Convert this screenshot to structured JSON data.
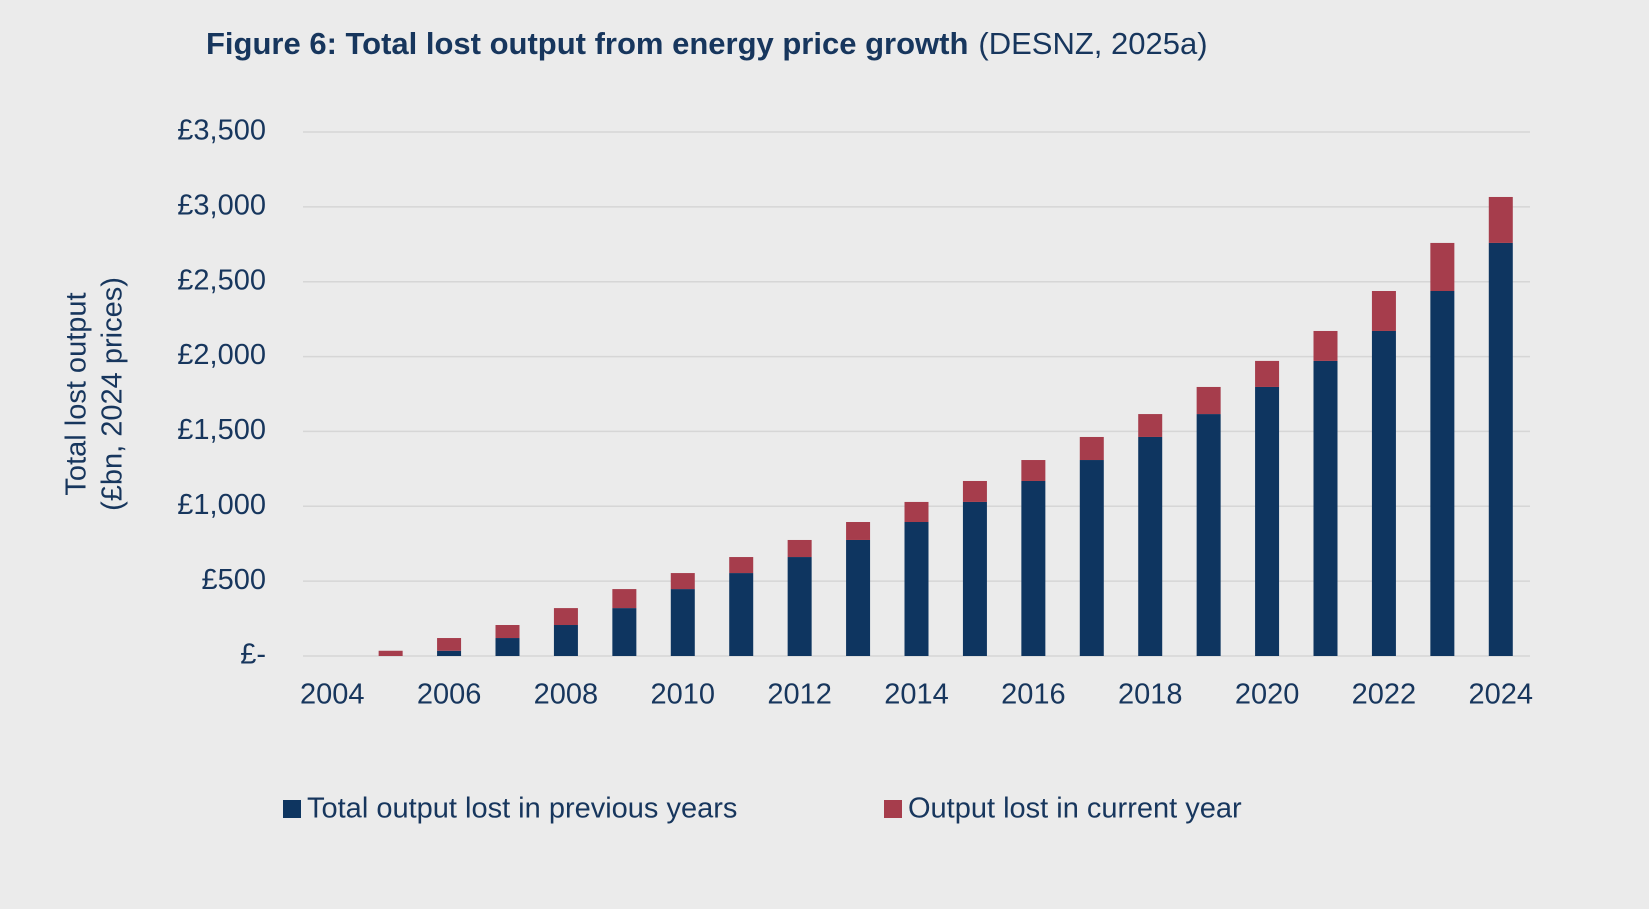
{
  "chart_data": {
    "type": "stacked_bar",
    "title": "Figure 6: Total lost output from energy price growth",
    "subtitle": "(DESNZ, 2025a)",
    "y_label": [
      "Total lost output",
      "(£bn, 2024 prices)"
    ],
    "categories": [
      "2004",
      null,
      "2006",
      null,
      "2008",
      null,
      "2010",
      null,
      "2012",
      null,
      "2014",
      null,
      "2016",
      null,
      "2018",
      null,
      "2020",
      null,
      "2022",
      null,
      "2024"
    ],
    "series": [
      {
        "name": "Total output lost in previous years",
        "color": "#0e3560",
        "values": [
          0,
          0,
          35,
          120,
          207,
          320,
          447,
          554,
          661,
          775,
          895,
          1029,
          1169,
          1309,
          1463,
          1616,
          1797,
          1971,
          2171,
          2438,
          2759
        ]
      },
      {
        "name": "Output lost in current year",
        "color": "#a63d4c",
        "values": [
          0,
          35,
          85,
          87,
          113,
          127,
          107,
          107,
          114,
          120,
          134,
          140,
          140,
          154,
          153,
          181,
          174,
          200,
          267,
          321,
          307
        ]
      }
    ],
    "ylim": [
      0,
      3500
    ],
    "yticks": [
      {
        "value": 0,
        "label": "£-"
      },
      {
        "value": 500,
        "label": "£500"
      },
      {
        "value": 1000,
        "label": "£1,000"
      },
      {
        "value": 1500,
        "label": "£1,500"
      },
      {
        "value": 2000,
        "label": "£2,000"
      },
      {
        "value": 2500,
        "label": "£2,500"
      },
      {
        "value": 3000,
        "label": "£3,000"
      },
      {
        "value": 3500,
        "label": "£3,500"
      }
    ],
    "grid": true,
    "legend": "bottom"
  }
}
